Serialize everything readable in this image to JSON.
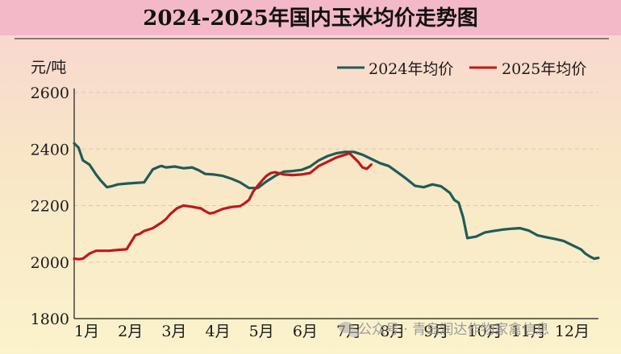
{
  "chart_data": {
    "type": "line",
    "title": "2024-2025年国内玉米均价走势图",
    "ylabel": "元/吨",
    "xlabel": "",
    "ylim": [
      1800,
      2600
    ],
    "yticks": [
      1800,
      2000,
      2200,
      2400,
      2600
    ],
    "xlim": [
      1,
      13
    ],
    "xticks": [
      {
        "label": "1月",
        "value": 1
      },
      {
        "label": "2月",
        "value": 2
      },
      {
        "label": "3月",
        "value": 3
      },
      {
        "label": "4月",
        "value": 4
      },
      {
        "label": "5月",
        "value": 5
      },
      {
        "label": "6月",
        "value": 6
      },
      {
        "label": "7月",
        "value": 7
      },
      {
        "label": "8月",
        "value": 8
      },
      {
        "label": "9月",
        "value": 9
      },
      {
        "label": "10月",
        "value": 10
      },
      {
        "label": "11月",
        "value": 11
      },
      {
        "label": "12月",
        "value": 12
      }
    ],
    "grid": "horizontal dashed",
    "legend_position": "top-right",
    "series": [
      {
        "name": "2024年均价",
        "color": "#1f5c58",
        "x": [
          1.0,
          1.1,
          1.2,
          1.35,
          1.5,
          1.6,
          1.75,
          1.85,
          2.0,
          2.2,
          2.4,
          2.6,
          2.8,
          2.95,
          3.0,
          3.1,
          3.3,
          3.5,
          3.7,
          3.85,
          4.0,
          4.2,
          4.4,
          4.6,
          4.8,
          5.0,
          5.2,
          5.4,
          5.6,
          5.8,
          6.0,
          6.2,
          6.4,
          6.6,
          6.8,
          7.0,
          7.2,
          7.4,
          7.6,
          7.8,
          8.0,
          8.2,
          8.4,
          8.6,
          8.8,
          9.0,
          9.2,
          9.4,
          9.6,
          9.7,
          9.8,
          9.9,
          10.0,
          10.2,
          10.4,
          10.6,
          10.8,
          11.0,
          11.2,
          11.4,
          11.6,
          11.8,
          12.0,
          12.2,
          12.4,
          12.6,
          12.7,
          12.8,
          12.9,
          13.0
        ],
        "values": [
          2420,
          2405,
          2360,
          2345,
          2310,
          2290,
          2265,
          2268,
          2275,
          2278,
          2280,
          2282,
          2328,
          2338,
          2340,
          2335,
          2338,
          2332,
          2335,
          2325,
          2312,
          2310,
          2305,
          2295,
          2282,
          2262,
          2262,
          2285,
          2305,
          2320,
          2322,
          2326,
          2338,
          2360,
          2375,
          2385,
          2390,
          2390,
          2380,
          2365,
          2350,
          2340,
          2318,
          2295,
          2270,
          2265,
          2275,
          2268,
          2245,
          2220,
          2210,
          2160,
          2085,
          2090,
          2105,
          2110,
          2115,
          2118,
          2120,
          2112,
          2095,
          2088,
          2082,
          2075,
          2060,
          2045,
          2030,
          2020,
          2012,
          2015
        ]
      },
      {
        "name": "2025年均价",
        "color": "#c0181c",
        "x": [
          1.0,
          1.1,
          1.2,
          1.35,
          1.5,
          1.6,
          1.8,
          2.0,
          2.2,
          2.4,
          2.5,
          2.6,
          2.8,
          3.0,
          3.1,
          3.2,
          3.35,
          3.5,
          3.6,
          3.75,
          3.9,
          4.0,
          4.1,
          4.2,
          4.4,
          4.6,
          4.8,
          4.9,
          5.0,
          5.1,
          5.2,
          5.3,
          5.4,
          5.5,
          5.6,
          5.8,
          6.0,
          6.2,
          6.4,
          6.6,
          6.8,
          7.0,
          7.2,
          7.3,
          7.4,
          7.5,
          7.6,
          7.7,
          7.8
        ],
        "values": [
          2012,
          2010,
          2012,
          2030,
          2040,
          2040,
          2040,
          2043,
          2045,
          2095,
          2100,
          2110,
          2120,
          2140,
          2152,
          2170,
          2190,
          2200,
          2198,
          2194,
          2190,
          2180,
          2172,
          2175,
          2188,
          2195,
          2198,
          2208,
          2220,
          2250,
          2270,
          2288,
          2305,
          2315,
          2318,
          2310,
          2308,
          2310,
          2315,
          2340,
          2355,
          2370,
          2380,
          2385,
          2370,
          2355,
          2335,
          2330,
          2345
        ]
      }
    ]
  },
  "watermark": {
    "text": "公众号 · 青岛润达作物家禽信息",
    "icon": "wechat-icon"
  },
  "colors": {
    "title_band": "#f4b9c8",
    "bg_top": "#f9d4d2",
    "bg_mid": "#f8e6c6",
    "bg_bottom": "#fbf3cc",
    "grid": "#d9c9b5",
    "axis": "#1a1a1a"
  }
}
